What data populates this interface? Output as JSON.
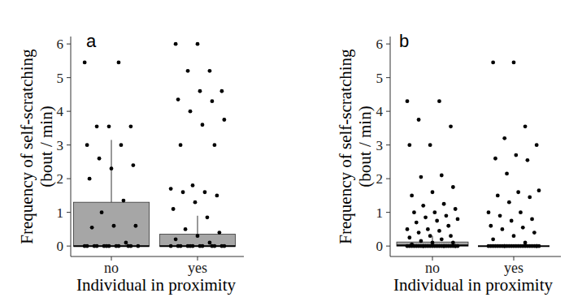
{
  "chart_data": [
    {
      "type": "box",
      "panel_label": "a",
      "x_label": "Individual in proximity",
      "y_label": [
        "Frequency of self-scratching",
        "(bout / min)"
      ],
      "categories": [
        "no",
        "yes"
      ],
      "color": "#a6a6a6",
      "boxes": [
        {
          "whisker_low": 0,
          "q1": 0,
          "median": 0,
          "q3": 1.3,
          "whisker_high": 3.15
        },
        {
          "whisker_low": 0,
          "q1": 0,
          "median": 0,
          "q3": 0.35,
          "whisker_high": 0.9
        }
      ],
      "points": [
        [
          5.45,
          5.45,
          3.55,
          3.55,
          3.55,
          3.0,
          3.0,
          2.6,
          2.4,
          2.3,
          2.0,
          1.35,
          1.0,
          0.6,
          0.6,
          0.55,
          0.1,
          0,
          0,
          0,
          0,
          0,
          0,
          0,
          0,
          0,
          0,
          0,
          0
        ],
        [
          6.0,
          6.0,
          5.2,
          5.2,
          4.6,
          4.6,
          4.35,
          4.3,
          4.0,
          3.75,
          3.6,
          3.0,
          3.0,
          1.8,
          1.7,
          1.6,
          1.6,
          1.5,
          1.3,
          1.1,
          0.85,
          0.5,
          0.4,
          0.3,
          0.2,
          0.1,
          0,
          0,
          0,
          0,
          0,
          0,
          0,
          0,
          0,
          0,
          0,
          0
        ]
      ],
      "ylim": [
        -0.31,
        6.22
      ],
      "yticks": [
        0,
        1,
        2,
        3,
        4,
        5,
        6
      ]
    },
    {
      "type": "box",
      "panel_label": "b",
      "x_label": "Individual in proximity",
      "y_label": [
        "Frequency of self-scratching",
        "(bout / min)"
      ],
      "categories": [
        "no",
        "yes"
      ],
      "color": "#a6a6a6",
      "boxes": [
        {
          "whisker_low": 0,
          "q1": 0,
          "median": 0.02,
          "q3": 0.12,
          "whisker_high": 0.3
        },
        {
          "whisker_low": 0,
          "q1": 0,
          "median": 0,
          "q3": 0,
          "whisker_high": 0
        }
      ],
      "points": [
        [
          4.3,
          4.3,
          3.75,
          3.55,
          3.0,
          3.0,
          2.1,
          2.05,
          1.75,
          1.6,
          1.5,
          1.25,
          1.2,
          1.1,
          1.0,
          1.0,
          0.9,
          0.85,
          0.8,
          0.75,
          0.7,
          0.6,
          0.5,
          0.5,
          0.45,
          0.4,
          0.3,
          0.3,
          0.25,
          0.2,
          0.15,
          0.1,
          0.1,
          0.05,
          0,
          0,
          0,
          0,
          0,
          0,
          0,
          0,
          0,
          0,
          0,
          0,
          0,
          0,
          0,
          0,
          0,
          0,
          0,
          0,
          0,
          0,
          0,
          0,
          0,
          0
        ],
        [
          5.45,
          5.45,
          3.55,
          3.2,
          3.0,
          2.7,
          2.6,
          2.55,
          2.15,
          1.65,
          1.6,
          1.5,
          1.45,
          1.3,
          1.0,
          1.0,
          0.9,
          0.8,
          0.75,
          0.6,
          0.55,
          0.5,
          0.4,
          0.3,
          0.2,
          0.1,
          0,
          0,
          0,
          0,
          0,
          0,
          0,
          0,
          0,
          0,
          0,
          0,
          0,
          0,
          0,
          0,
          0,
          0,
          0,
          0,
          0,
          0,
          0,
          0,
          0
        ]
      ],
      "ylim": [
        -0.31,
        6.22
      ],
      "yticks": [
        0,
        1,
        2,
        3,
        4,
        5,
        6
      ]
    }
  ]
}
